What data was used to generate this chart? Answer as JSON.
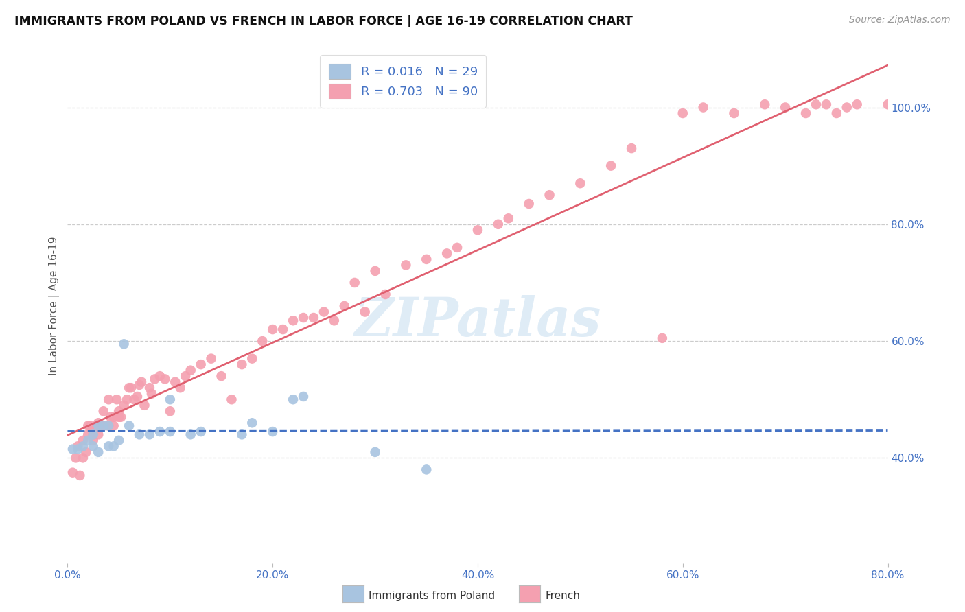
{
  "title": "IMMIGRANTS FROM POLAND VS FRENCH IN LABOR FORCE | AGE 16-19 CORRELATION CHART",
  "source": "Source: ZipAtlas.com",
  "ylabel": "In Labor Force | Age 16-19",
  "x_tick_labels": [
    "0.0%",
    "20.0%",
    "40.0%",
    "60.0%",
    "80.0%"
  ],
  "x_tick_values": [
    0.0,
    0.2,
    0.4,
    0.6,
    0.8
  ],
  "y_tick_labels": [
    "40.0%",
    "60.0%",
    "80.0%",
    "100.0%"
  ],
  "y_tick_values": [
    0.4,
    0.6,
    0.8,
    1.0
  ],
  "xlim": [
    0.0,
    0.8
  ],
  "ylim": [
    0.22,
    1.1
  ],
  "legend_labels": [
    "Immigrants from Poland",
    "French"
  ],
  "legend_r_line1": "R = 0.016   N = 29",
  "legend_r_line2": "R = 0.703   N = 90",
  "poland_color": "#a8c4e0",
  "french_color": "#f4a0b0",
  "poland_line_color": "#4472c4",
  "french_line_color": "#e06070",
  "background_color": "#ffffff",
  "grid_color": "#cccccc",
  "watermark": "ZIPatlas",
  "poland_scatter_x": [
    0.005,
    0.01,
    0.015,
    0.02,
    0.025,
    0.025,
    0.03,
    0.03,
    0.035,
    0.04,
    0.04,
    0.045,
    0.05,
    0.055,
    0.06,
    0.07,
    0.08,
    0.09,
    0.1,
    0.1,
    0.12,
    0.13,
    0.17,
    0.18,
    0.2,
    0.22,
    0.23,
    0.3,
    0.35
  ],
  "poland_scatter_y": [
    0.415,
    0.415,
    0.42,
    0.43,
    0.42,
    0.44,
    0.41,
    0.455,
    0.455,
    0.42,
    0.455,
    0.42,
    0.43,
    0.595,
    0.455,
    0.44,
    0.44,
    0.445,
    0.5,
    0.445,
    0.44,
    0.445,
    0.44,
    0.46,
    0.445,
    0.5,
    0.505,
    0.41,
    0.38
  ],
  "french_scatter_x": [
    0.005,
    0.008,
    0.01,
    0.012,
    0.015,
    0.015,
    0.018,
    0.02,
    0.02,
    0.022,
    0.025,
    0.025,
    0.028,
    0.03,
    0.03,
    0.032,
    0.035,
    0.035,
    0.04,
    0.04,
    0.042,
    0.045,
    0.045,
    0.048,
    0.05,
    0.05,
    0.052,
    0.055,
    0.058,
    0.06,
    0.062,
    0.065,
    0.068,
    0.07,
    0.072,
    0.075,
    0.08,
    0.082,
    0.085,
    0.09,
    0.095,
    0.1,
    0.105,
    0.11,
    0.115,
    0.12,
    0.13,
    0.14,
    0.15,
    0.16,
    0.17,
    0.18,
    0.19,
    0.2,
    0.21,
    0.22,
    0.23,
    0.24,
    0.25,
    0.26,
    0.27,
    0.28,
    0.29,
    0.3,
    0.31,
    0.33,
    0.35,
    0.37,
    0.38,
    0.4,
    0.42,
    0.43,
    0.45,
    0.47,
    0.5,
    0.53,
    0.55,
    0.58,
    0.6,
    0.62,
    0.65,
    0.68,
    0.7,
    0.72,
    0.73,
    0.74,
    0.75,
    0.76,
    0.77,
    0.8
  ],
  "french_scatter_y": [
    0.375,
    0.4,
    0.42,
    0.37,
    0.4,
    0.43,
    0.41,
    0.44,
    0.455,
    0.455,
    0.43,
    0.44,
    0.455,
    0.44,
    0.46,
    0.455,
    0.48,
    0.455,
    0.455,
    0.5,
    0.47,
    0.455,
    0.47,
    0.5,
    0.47,
    0.48,
    0.47,
    0.49,
    0.5,
    0.52,
    0.52,
    0.5,
    0.505,
    0.525,
    0.53,
    0.49,
    0.52,
    0.51,
    0.535,
    0.54,
    0.535,
    0.48,
    0.53,
    0.52,
    0.54,
    0.55,
    0.56,
    0.57,
    0.54,
    0.5,
    0.56,
    0.57,
    0.6,
    0.62,
    0.62,
    0.635,
    0.64,
    0.64,
    0.65,
    0.635,
    0.66,
    0.7,
    0.65,
    0.72,
    0.68,
    0.73,
    0.74,
    0.75,
    0.76,
    0.79,
    0.8,
    0.81,
    0.835,
    0.85,
    0.87,
    0.9,
    0.93,
    0.605,
    0.99,
    1.0,
    0.99,
    1.005,
    1.0,
    0.99,
    1.005,
    1.005,
    0.99,
    1.0,
    1.005,
    1.005
  ]
}
